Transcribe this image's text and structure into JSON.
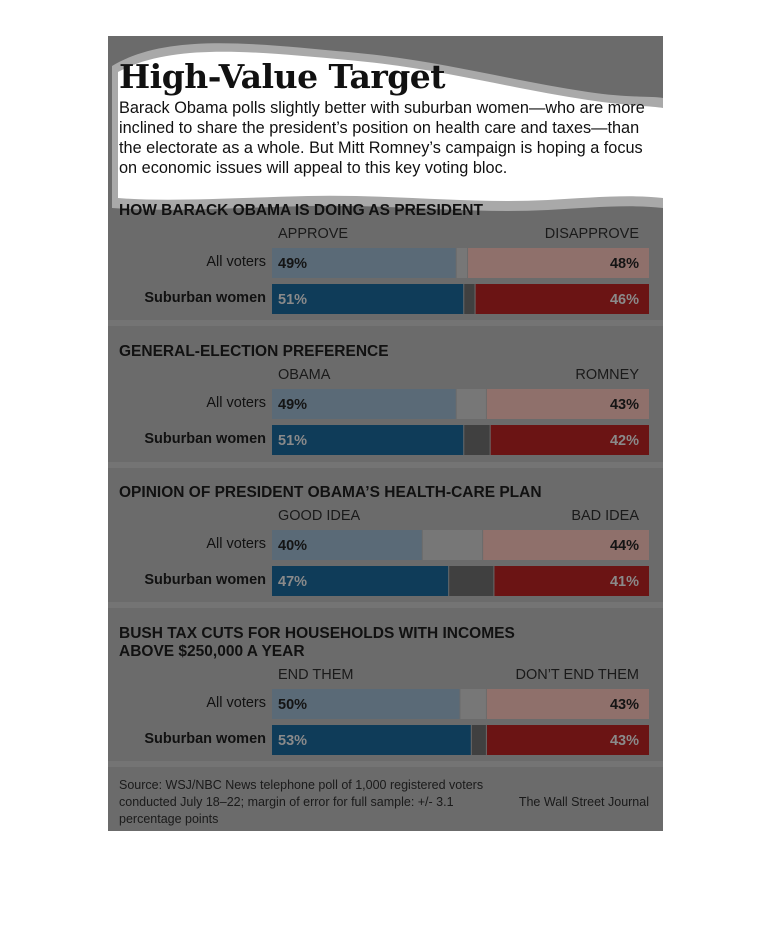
{
  "title": "High-Value Target",
  "intro": "Barack Obama polls slightly better with suburban women—who are more inclined to share the president’s position on health care and taxes—than the electorate as a whole. But Mitt Romney’s campaign is hoping a focus on economic issues will appeal to this key voting bloc.",
  "source": "Source: WSJ/NBC News telephone poll of 1,000 registered voters conducted July 18–22; margin of error for full sample: +/- 3.1 percentage points",
  "credit": "The Wall Street Journal",
  "colors": {
    "background": "#6b6b6b",
    "highlight": "#ffffff",
    "all_left": "#5a6a77",
    "all_right": "#8f706b",
    "all_mid": "#777777",
    "women_left": "#0f3c59",
    "women_right": "#6b1414",
    "women_mid": "#404040"
  },
  "chart_data": [
    {
      "type": "bar",
      "title": "HOW BARACK OBAMA IS DOING AS PRESIDENT",
      "left_label": "APPROVE",
      "right_label": "DISAPPROVE",
      "rows": [
        {
          "label": "All voters",
          "left": 49,
          "right": 48,
          "left_text": "49%",
          "right_text": "48%"
        },
        {
          "label": "Suburban women",
          "left": 51,
          "right": 46,
          "left_text": "51%",
          "right_text": "46%"
        }
      ]
    },
    {
      "type": "bar",
      "title": "GENERAL-ELECTION PREFERENCE",
      "left_label": "OBAMA",
      "right_label": "ROMNEY",
      "rows": [
        {
          "label": "All voters",
          "left": 49,
          "right": 43,
          "left_text": "49%",
          "right_text": "43%"
        },
        {
          "label": "Suburban women",
          "left": 51,
          "right": 42,
          "left_text": "51%",
          "right_text": "42%"
        }
      ]
    },
    {
      "type": "bar",
      "title": "OPINION OF PRESIDENT OBAMA’S HEALTH-CARE PLAN",
      "left_label": "GOOD IDEA",
      "right_label": "BAD IDEA",
      "rows": [
        {
          "label": "All voters",
          "left": 40,
          "right": 44,
          "left_text": "40%",
          "right_text": "44%"
        },
        {
          "label": "Suburban women",
          "left": 47,
          "right": 41,
          "left_text": "47%",
          "right_text": "41%"
        }
      ]
    },
    {
      "type": "bar",
      "title": "BUSH TAX CUTS FOR HOUSEHOLDS WITH INCOMES ABOVE $250,000 A YEAR",
      "title_lines": [
        "BUSH TAX CUTS FOR HOUSEHOLDS WITH INCOMES",
        "ABOVE $250,000 A YEAR"
      ],
      "left_label": "END THEM",
      "right_label": "DON’T END THEM",
      "rows": [
        {
          "label": "All voters",
          "left": 50,
          "right": 43,
          "left_text": "50%",
          "right_text": "43%"
        },
        {
          "label": "Suburban women",
          "left": 53,
          "right": 43,
          "left_text": "53%",
          "right_text": "43%"
        }
      ]
    }
  ]
}
